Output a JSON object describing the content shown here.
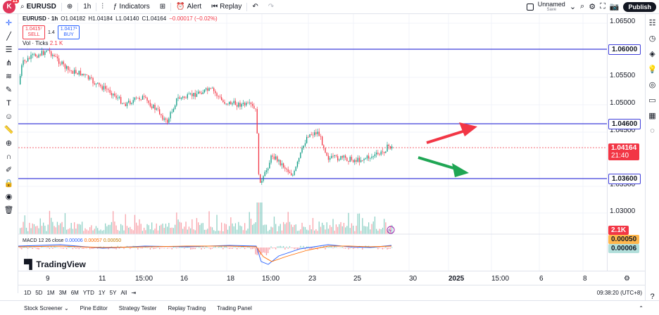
{
  "header": {
    "logo_text": "K",
    "logo_badge": "11",
    "symbol": "EURUSD",
    "interval": "1h",
    "indicators_label": "Indicators",
    "alert_label": "Alert",
    "replay_label": "Replay",
    "layout_name": "Unnamed",
    "layout_status": "Save",
    "publish_label": "Publish"
  },
  "legend": {
    "symbol": "EURUSD · 1h",
    "open": "O1.04182",
    "high": "H1.04184",
    "low": "L1.04140",
    "close": "C1.04164",
    "change": "−0.00017 (−0.02%)",
    "sell_price": "1.0415⁷",
    "sell_label": "SELL",
    "spread": "1.4",
    "buy_price": "1.0417¹",
    "buy_label": "BUY",
    "volume_label": "Vol · Ticks",
    "volume_value": "2.1 K",
    "macd_label": "MACD 12 26 close",
    "macd_v1": "0.00006",
    "macd_v2": "0.00057",
    "macd_v3": "0.00050"
  },
  "price_axis": {
    "ticks": [
      "1.06500",
      "1.05500",
      "1.05000",
      "1.04500",
      "1.03500",
      "1.03000"
    ],
    "level_1": "1.06000",
    "level_2": "1.04600",
    "level_3": "1.03600",
    "last_price": "1.04164",
    "countdown": "21:40",
    "volume_badge": "2.1K",
    "macd_badge_1": "0.00050",
    "macd_badge_2": "0.00006"
  },
  "time_axis": {
    "labels": [
      "9",
      "11",
      "15:00",
      "16",
      "18",
      "15:00",
      "23",
      "25",
      "30",
      "2025",
      "15:00",
      "6",
      "8"
    ]
  },
  "ranges": {
    "items": [
      "1D",
      "5D",
      "1M",
      "3M",
      "6M",
      "YTD",
      "1Y",
      "5Y",
      "All"
    ],
    "clock": "09:38:20 (UTC+8)"
  },
  "bottom": {
    "tabs": [
      "Stock Screener",
      "Pine Editor",
      "Strategy Tester",
      "Replay Trading",
      "Trading Panel"
    ]
  },
  "brand": {
    "name": "TradingView"
  },
  "colors": {
    "up": "#089981",
    "down": "#f23645",
    "level": "#3f3fd9",
    "arrow_up": "#f23645",
    "arrow_down": "#1fa654"
  }
}
